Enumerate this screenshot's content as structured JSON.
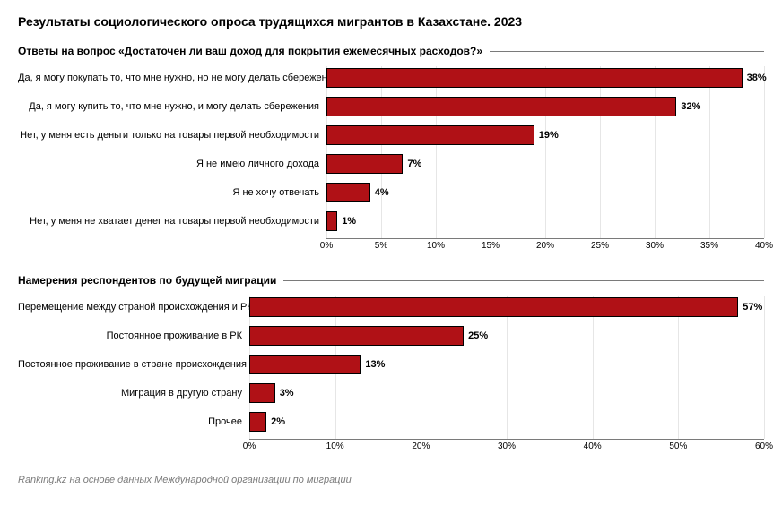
{
  "title": "Результаты социологического опроса трудящихся мигрантов в Казахстане. 2023",
  "footer": "Ranking.kz на основе данных Международной организации по миграции",
  "bar_color": "#b01116",
  "bar_border": "#000000",
  "grid_color": "#e6e6e6",
  "chart1": {
    "title": "Ответы на вопрос «Достаточен ли ваш доход для покрытия ежемесячных расходов?»",
    "label_width": 344,
    "xmax": 40,
    "xtick_step": 5,
    "rows": [
      {
        "label": "Да, я могу покупать то, что мне нужно, но не могу делать сбережения",
        "value": 38
      },
      {
        "label": "Да, я могу купить то, что мне нужно, и могу делать сбережения",
        "value": 32
      },
      {
        "label": "Нет, у меня есть деньги только на товары первой необходимости",
        "value": 19
      },
      {
        "label": "Я не имею личного дохода",
        "value": 7
      },
      {
        "label": "Я не хочу отвечать",
        "value": 4
      },
      {
        "label": "Нет, у меня не хватает денег на товары первой необходимости",
        "value": 1
      }
    ]
  },
  "chart2": {
    "title": "Намерения респондентов по будущей миграции",
    "label_width": 258,
    "xmax": 60,
    "xtick_step": 10,
    "rows": [
      {
        "label": "Перемещение между страной происхождения и РК",
        "value": 57
      },
      {
        "label": "Постоянное проживание в РК",
        "value": 25
      },
      {
        "label": "Постоянное проживание в стране происхождения",
        "value": 13
      },
      {
        "label": "Миграция в другую страну",
        "value": 3
      },
      {
        "label": "Прочее",
        "value": 2
      }
    ]
  }
}
